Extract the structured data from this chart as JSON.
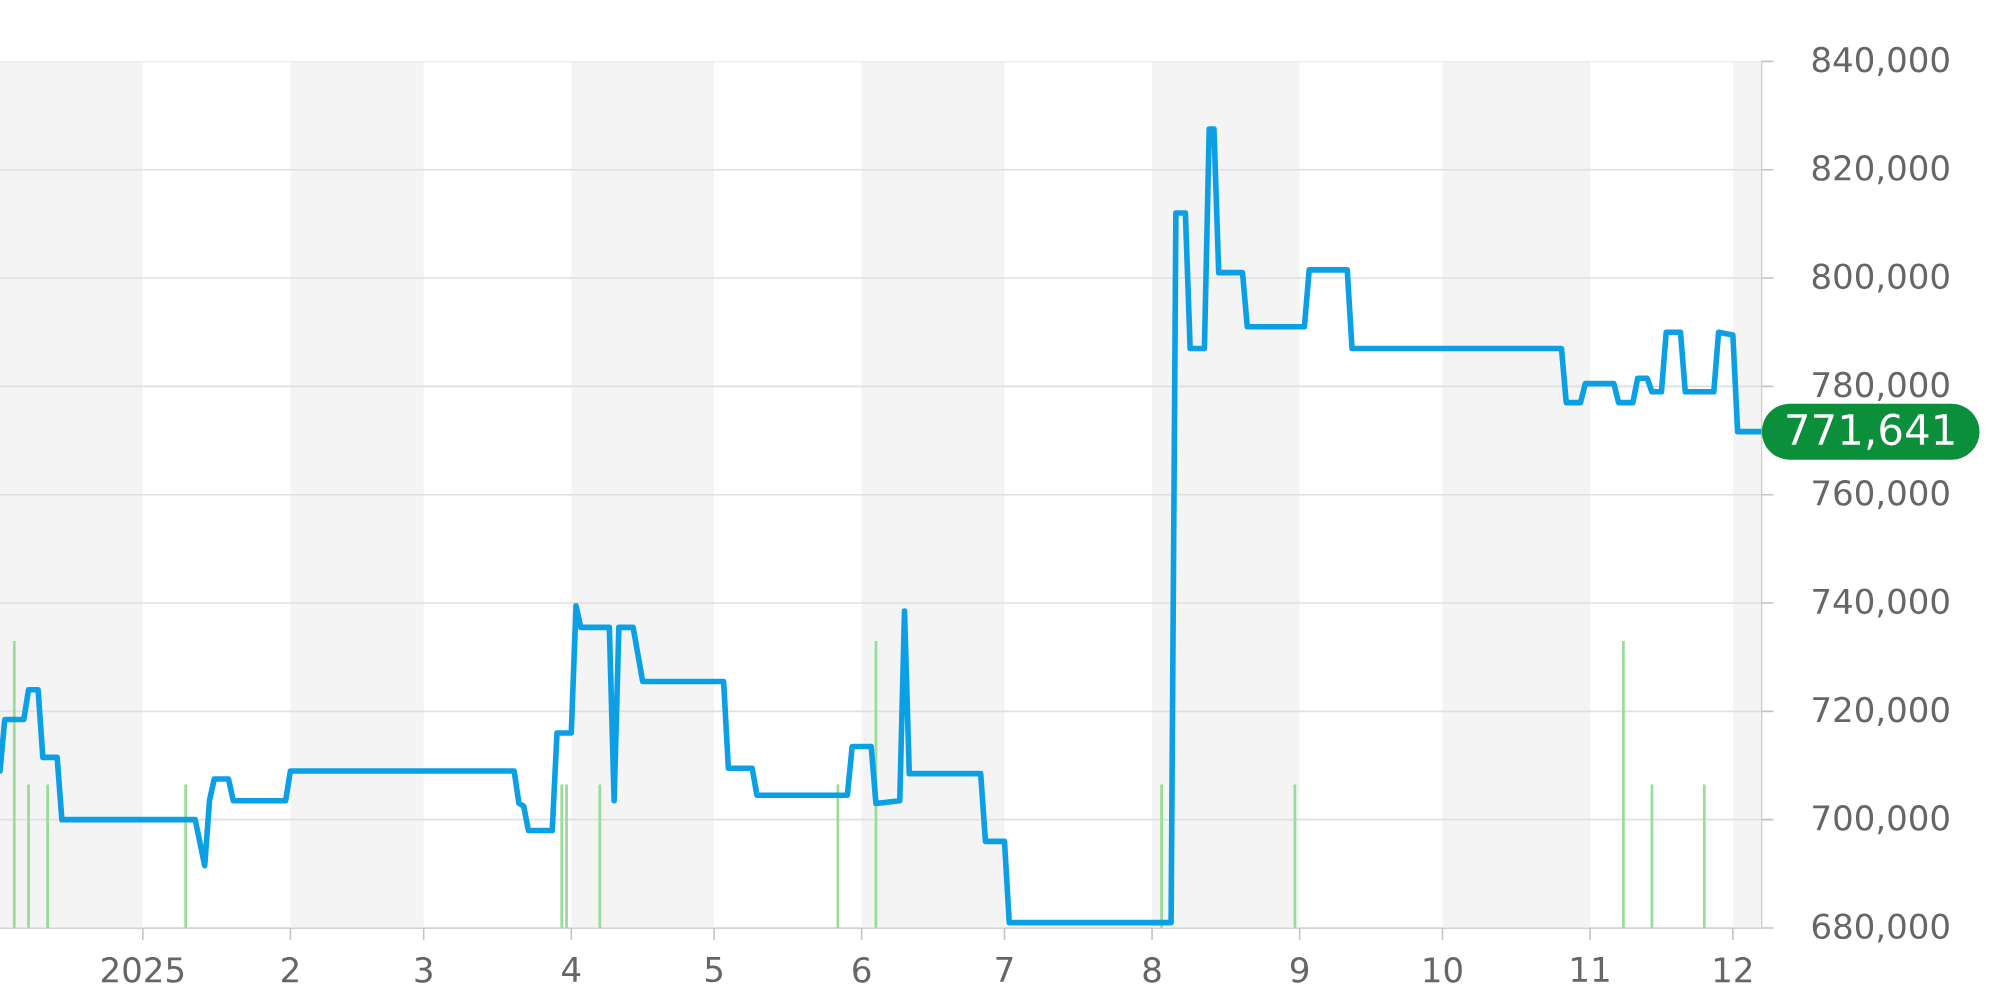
{
  "chart_data": {
    "type": "line",
    "xlim": [
      "2024-12-02",
      "2025-12-07"
    ],
    "xticks": [
      {
        "value": "2025-01-01",
        "label": "2025"
      },
      {
        "value": "2025-02-01",
        "label": "2"
      },
      {
        "value": "2025-03-01",
        "label": "3"
      },
      {
        "value": "2025-04-01",
        "label": "4"
      },
      {
        "value": "2025-05-01",
        "label": "5"
      },
      {
        "value": "2025-06-01",
        "label": "6"
      },
      {
        "value": "2025-07-01",
        "label": "7"
      },
      {
        "value": "2025-08-01",
        "label": "8"
      },
      {
        "value": "2025-09-01",
        "label": "9"
      },
      {
        "value": "2025-10-01",
        "label": "10"
      },
      {
        "value": "2025-11-01",
        "label": "11"
      },
      {
        "value": "2025-12-01",
        "label": "12"
      }
    ],
    "ylim": [
      680000,
      840000
    ],
    "yticks": [
      {
        "value": 680000,
        "label": "680,000"
      },
      {
        "value": 700000,
        "label": "700,000"
      },
      {
        "value": 720000,
        "label": "720,000"
      },
      {
        "value": 740000,
        "label": "740,000"
      },
      {
        "value": 760000,
        "label": "760,000"
      },
      {
        "value": 780000,
        "label": "780,000"
      },
      {
        "value": 800000,
        "label": "800,000"
      },
      {
        "value": 820000,
        "label": "820,000"
      },
      {
        "value": 840000,
        "label": "840,000"
      }
    ],
    "grid": "y",
    "bands": [
      {
        "axis": "x",
        "from": "2024-12-02",
        "to": "2025-01-01",
        "color": "#f4f4f4"
      },
      {
        "axis": "x",
        "from": "2025-02-01",
        "to": "2025-03-01",
        "color": "#f4f4f4"
      },
      {
        "axis": "x",
        "from": "2025-04-01",
        "to": "2025-05-01",
        "color": "#f4f4f4"
      },
      {
        "axis": "x",
        "from": "2025-06-01",
        "to": "2025-07-01",
        "color": "#f4f4f4"
      },
      {
        "axis": "x",
        "from": "2025-08-01",
        "to": "2025-09-01",
        "color": "#f4f4f4"
      },
      {
        "axis": "x",
        "from": "2025-10-01",
        "to": "2025-11-01",
        "color": "#f4f4f4"
      },
      {
        "axis": "x",
        "from": "2025-12-01",
        "to": "2025-12-07",
        "color": "#f4f4f4"
      }
    ],
    "series": [
      {
        "color": "#0ba0e6",
        "x": [
          "2024-12-02",
          "2024-12-03",
          "2024-12-07",
          "2024-12-08",
          "2024-12-10",
          "2024-12-11",
          "2024-12-14",
          "2024-12-15",
          "2025-01-12",
          "2025-01-14",
          "2025-01-15",
          "2025-01-16",
          "2025-01-19",
          "2025-01-20",
          "2025-01-31",
          "2025-02-01",
          "2025-03-20",
          "2025-03-21",
          "2025-03-22",
          "2025-03-23",
          "2025-03-28",
          "2025-03-29",
          "2025-04-01",
          "2025-04-02",
          "2025-04-03",
          "2025-04-09",
          "2025-04-10",
          "2025-04-11",
          "2025-04-14",
          "2025-04-16",
          "2025-05-03",
          "2025-05-04",
          "2025-05-09",
          "2025-05-10",
          "2025-05-29",
          "2025-05-30",
          "2025-06-03",
          "2025-06-04",
          "2025-06-09",
          "2025-06-10",
          "2025-06-11",
          "2025-06-26",
          "2025-06-27",
          "2025-07-01",
          "2025-07-02",
          "2025-08-05",
          "2025-08-06",
          "2025-08-08",
          "2025-08-09",
          "2025-08-12",
          "2025-08-13",
          "2025-08-14",
          "2025-08-15",
          "2025-08-20",
          "2025-08-21",
          "2025-09-02",
          "2025-09-03",
          "2025-09-11",
          "2025-09-12",
          "2025-10-26",
          "2025-10-27",
          "2025-10-30",
          "2025-10-31",
          "2025-11-06",
          "2025-11-07",
          "2025-11-10",
          "2025-11-11",
          "2025-11-13",
          "2025-11-14",
          "2025-11-16",
          "2025-11-17",
          "2025-11-20",
          "2025-11-21",
          "2025-11-27",
          "2025-11-28",
          "2025-12-01",
          "2025-12-02",
          "2025-12-07"
        ],
        "values": [
          709000,
          718500,
          718500,
          724000,
          724000,
          711500,
          711500,
          700000,
          700000,
          691500,
          703500,
          707500,
          707500,
          703500,
          703500,
          709000,
          709000,
          703000,
          702500,
          698000,
          698000,
          716000,
          716000,
          739500,
          735500,
          735500,
          703500,
          735500,
          735500,
          725500,
          725500,
          709500,
          709500,
          704500,
          704500,
          713500,
          713500,
          703000,
          703500,
          738500,
          708500,
          708500,
          696000,
          696000,
          681000,
          681000,
          812000,
          812000,
          787000,
          787000,
          827500,
          827500,
          801000,
          801000,
          791000,
          791000,
          801500,
          801500,
          787000,
          787000,
          777000,
          777000,
          780500,
          780500,
          777000,
          777000,
          781500,
          781500,
          779000,
          779000,
          790000,
          790000,
          779000,
          779000,
          790000,
          789500,
          771641,
          771641
        ]
      },
      {
        "type": "bar",
        "color": "#99dd99",
        "x": [
          "2024-12-05",
          "2024-12-08",
          "2024-12-12",
          "2025-01-10",
          "2025-03-30",
          "2025-03-31",
          "2025-04-07",
          "2025-05-27",
          "2025-06-04",
          "2025-08-03",
          "2025-08-31",
          "2025-11-08",
          "2025-11-14",
          "2025-11-25"
        ],
        "values": [
          733000,
          706500,
          706500,
          706500,
          706500,
          706500,
          706500,
          706500,
          733000,
          706500,
          706500,
          733000,
          706500,
          706500
        ]
      }
    ],
    "annotations": [
      {
        "text": "771,641",
        "x": "2025-12-07",
        "y": 771641
      }
    ]
  }
}
